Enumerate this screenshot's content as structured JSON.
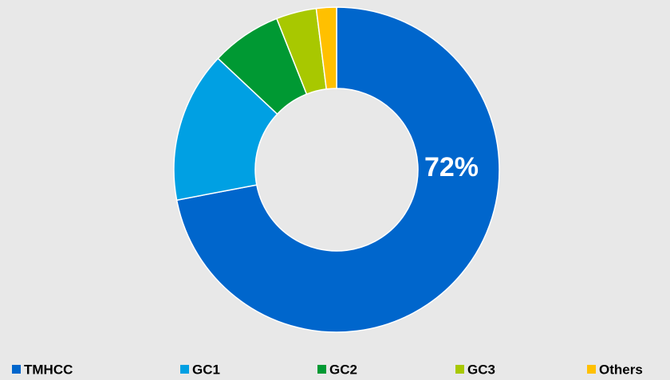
{
  "chart_data": {
    "type": "pie",
    "categories": [
      "TMHCC",
      "GC1",
      "GC2",
      "GC3",
      "Others"
    ],
    "values": [
      72,
      15,
      7,
      4,
      2
    ],
    "value_labels": [
      "72%",
      null,
      null,
      null,
      null
    ],
    "colors": [
      "#0066cc",
      "#00a0e3",
      "#009933",
      "#a8c800",
      "#ffc000"
    ],
    "hole": true
  }
}
